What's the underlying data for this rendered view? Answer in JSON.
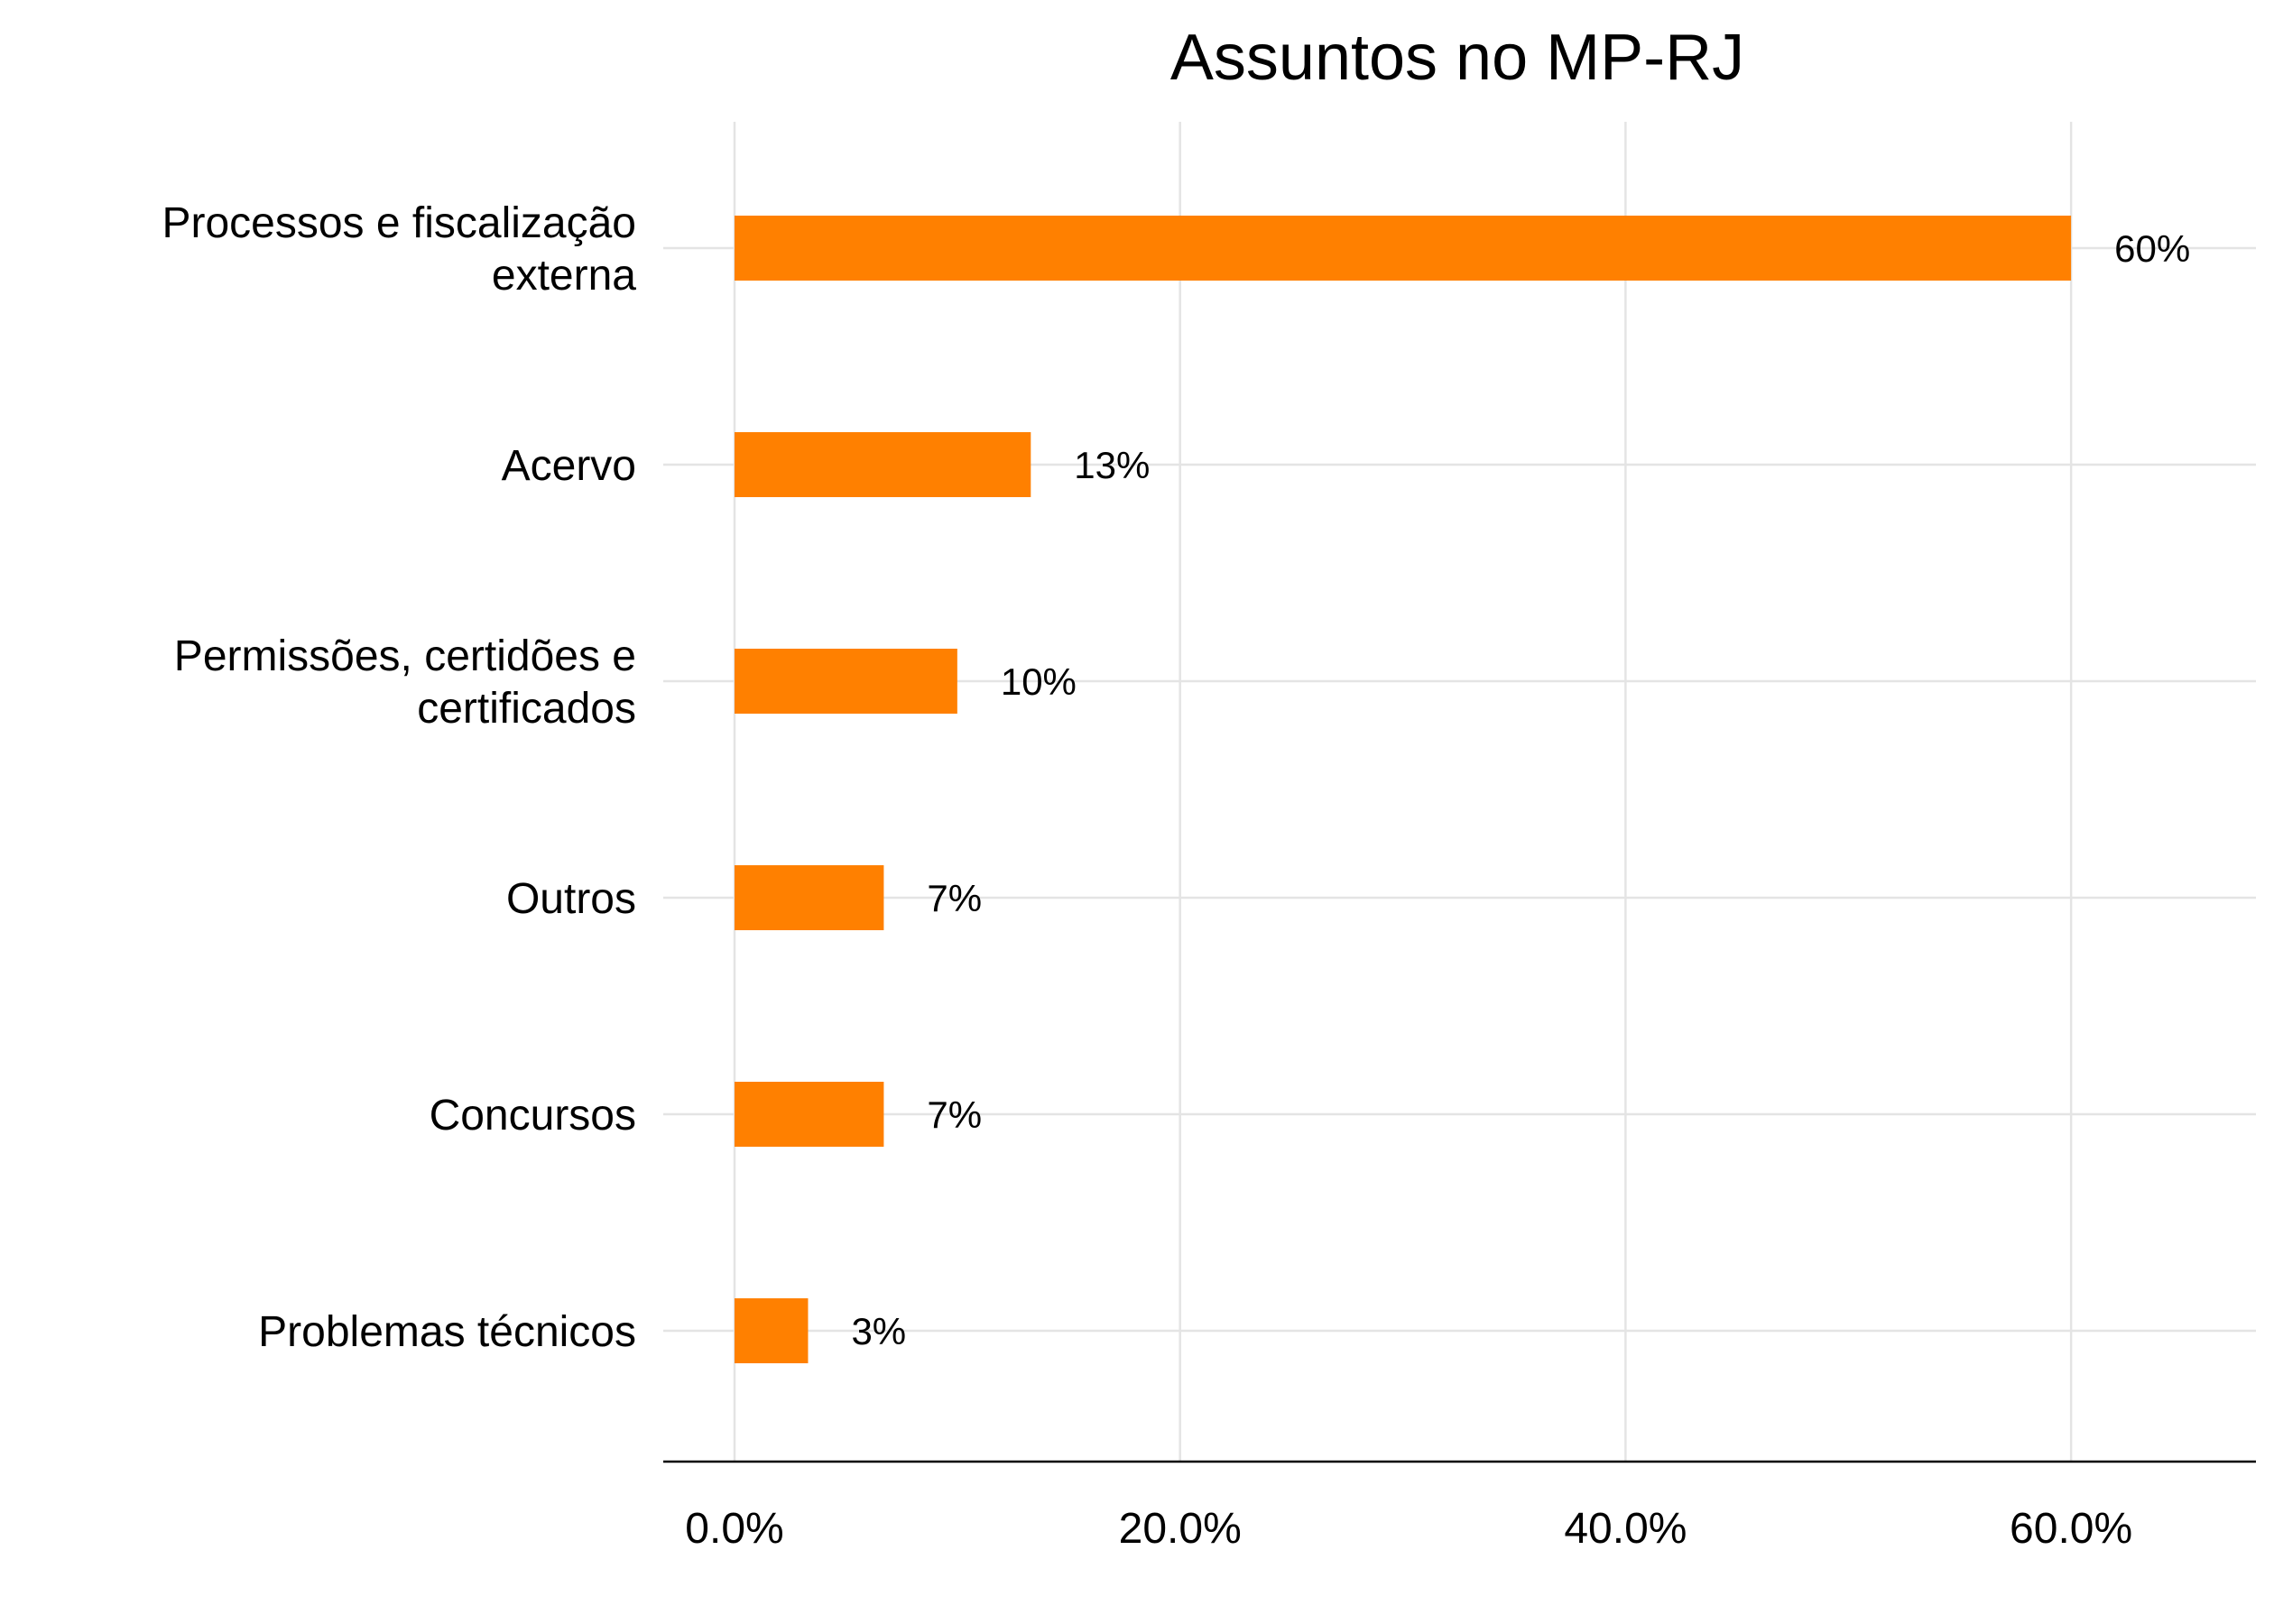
{
  "chart_data": {
    "type": "bar",
    "orientation": "horizontal",
    "title": "Assuntos no MP-RJ",
    "xlabel": "",
    "ylabel": "",
    "categories": [
      "Processos e fiscalização externa",
      "Acervo",
      "Permissões, certidões e certificados",
      "Outros",
      "Concursos",
      "Problemas técnicos"
    ],
    "category_lines": [
      [
        "Processos e fiscalização",
        "externa"
      ],
      [
        "Acervo"
      ],
      [
        "Permissões, certidões e",
        "certificados"
      ],
      [
        "Outros"
      ],
      [
        "Concursos"
      ],
      [
        "Problemas técnicos"
      ]
    ],
    "values": [
      60,
      13.3,
      10,
      6.7,
      6.7,
      3.3
    ],
    "data_labels": [
      "60%",
      "13%",
      "10%",
      "7%",
      "7%",
      "3%"
    ],
    "xlim": [
      -3.2,
      68.3
    ],
    "xticks": [
      0,
      20,
      40,
      60
    ],
    "xtick_labels": [
      "0.0%",
      "20.0%",
      "40.0%",
      "60.0%"
    ],
    "grid": true,
    "bar_color": "#FF8000"
  }
}
